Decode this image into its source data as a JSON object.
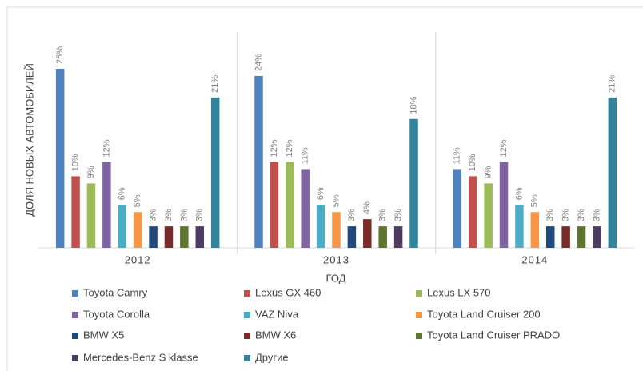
{
  "chart_data": {
    "type": "bar",
    "x_label": "ГОД",
    "y_label": "ДОЛЯ НОВЫХ АВТОМОБИЛЕЙ",
    "categories": [
      "2012",
      "2013",
      "2014"
    ],
    "ylim": [
      0,
      25
    ],
    "series": [
      {
        "name": "Toyota Camry",
        "color": "#4f81bd",
        "values": [
          25,
          24,
          11
        ],
        "value_labels": [
          "25%",
          "24%",
          "11%"
        ]
      },
      {
        "name": "Lexus GX 460",
        "color": "#c0504d",
        "values": [
          10,
          12,
          10
        ],
        "value_labels": [
          "10%",
          "12%",
          "10%"
        ]
      },
      {
        "name": "Lexus LX 570",
        "color": "#9bbb59",
        "values": [
          9,
          12,
          9
        ],
        "value_labels": [
          "9%",
          "12%",
          "9%"
        ]
      },
      {
        "name": "Toyota Corolla",
        "color": "#8064a2",
        "values": [
          12,
          11,
          12
        ],
        "value_labels": [
          "12%",
          "11%",
          "12%"
        ]
      },
      {
        "name": "VAZ Niva",
        "color": "#4bacc6",
        "values": [
          6,
          6,
          6
        ],
        "value_labels": [
          "6%",
          "6%",
          "6%"
        ]
      },
      {
        "name": "Toyota Land Cruiser 200",
        "color": "#f79646",
        "values": [
          5,
          5,
          5
        ],
        "value_labels": [
          "5%",
          "5%",
          "5%"
        ]
      },
      {
        "name": "BMW X5",
        "color": "#1f497d",
        "values": [
          3,
          3,
          3
        ],
        "value_labels": [
          "3%",
          "3%",
          "3%"
        ]
      },
      {
        "name": "BMW X6",
        "color": "#772c2a",
        "values": [
          3,
          4,
          3
        ],
        "value_labels": [
          "3%",
          "4%",
          "3%"
        ]
      },
      {
        "name": "Toyota Land Cruiser PRADO",
        "color": "#5f7530",
        "values": [
          3,
          3,
          3
        ],
        "value_labels": [
          "3%",
          "3%",
          "3%"
        ]
      },
      {
        "name": "Mercedes-Benz S klasse",
        "color": "#4d3b62",
        "values": [
          3,
          3,
          3
        ],
        "value_labels": [
          "3%",
          "3%",
          "3%"
        ]
      },
      {
        "name": "Другие",
        "color": "#31849b",
        "values": [
          21,
          18,
          21
        ],
        "value_labels": [
          "21%",
          "18%",
          "21%"
        ]
      }
    ]
  }
}
